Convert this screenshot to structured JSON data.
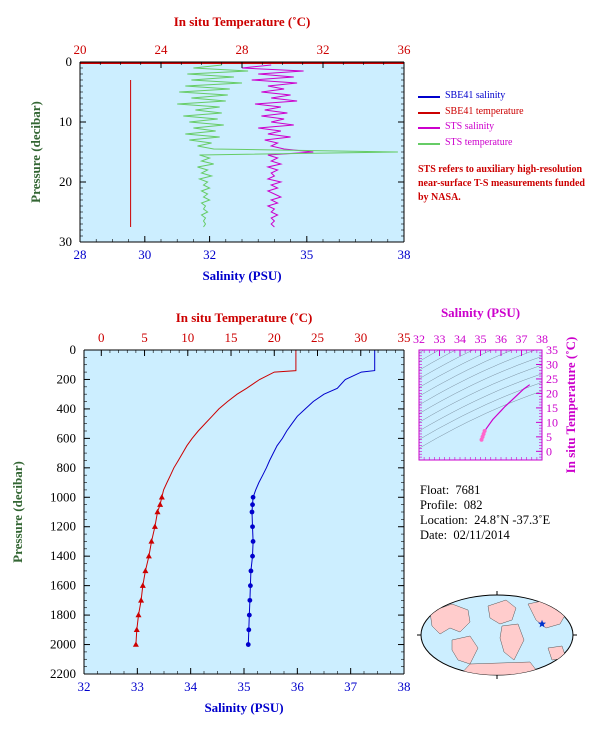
{
  "chart_data": [
    {
      "type": "line",
      "x_bottom": {
        "label": "Salinity (PSU)",
        "range": [
          28,
          38
        ],
        "ticks": [
          "28",
          "30",
          "32",
          "35",
          "38"
        ],
        "tick_values": [
          28,
          30,
          32,
          35,
          38
        ]
      },
      "x_top": {
        "label": "In situ Temperature (˚C)",
        "range": [
          20,
          36
        ],
        "ticks": [
          "20",
          "24",
          "28",
          "32",
          "36"
        ],
        "tick_values": [
          20,
          24,
          28,
          32,
          36
        ]
      },
      "y": {
        "label": "Pressure (decibar)",
        "range": [
          0,
          30
        ],
        "ticks": [
          "0",
          "10",
          "20",
          "30"
        ],
        "tick_values": [
          0,
          10,
          20,
          30
        ],
        "inverted": true
      },
      "legend": {
        "placement": "right",
        "entries": [
          {
            "name": "SBE41 salinity",
            "color": "#0000cc"
          },
          {
            "name": "SBE41 temperature",
            "color": "#cc0000"
          },
          {
            "name": "STS salinity",
            "color": "#cc00cc"
          },
          {
            "name": "STS temperature",
            "color": "#66cc66"
          }
        ]
      },
      "note": "STS refers to auxiliary high-resolution near-surface T-S measurements funded by NASA.",
      "series": [
        {
          "name": "STS salinity",
          "color": "#cc00cc",
          "pressure": [
            0.5,
            1,
            1.5,
            2,
            2.5,
            3,
            3.5,
            4,
            4.5,
            5,
            5.5,
            6,
            6.5,
            7,
            7.5,
            8,
            8.5,
            9,
            9.5,
            10,
            10.5,
            11,
            11.5,
            12,
            12.5,
            13,
            13.5,
            14,
            14.5,
            15,
            15.5,
            16,
            16.5,
            17,
            17.5,
            18,
            18.5,
            19,
            19.5,
            20,
            20.5,
            21,
            21.5,
            22,
            22.5,
            23,
            23.5,
            24,
            24.5,
            25,
            25.5,
            26,
            26.5,
            27,
            27.5
          ],
          "salinity": [
            33.9,
            33.0,
            34.9,
            33.5,
            34.6,
            33.3,
            34.7,
            33.8,
            34.3,
            33.6,
            34.5,
            33.9,
            34.7,
            33.4,
            34.2,
            33.7,
            34.4,
            33.6,
            34.3,
            33.9,
            34.6,
            33.5,
            34.2,
            33.8,
            34.5,
            33.7,
            34.1,
            33.9,
            34.3,
            35.2,
            33.8,
            34.1,
            33.9,
            34.2,
            33.8,
            34.1,
            33.9,
            34.0,
            33.8,
            34.2,
            33.9,
            34.1,
            33.8,
            34.0,
            34.2,
            33.9,
            34.1,
            33.8,
            34.0,
            33.9,
            34.1,
            33.9,
            34.0,
            33.9,
            34.0
          ]
        },
        {
          "name": "STS temperature",
          "color": "#66cc66",
          "pressure": [
            0.5,
            1,
            1.5,
            2,
            2.5,
            3,
            3.5,
            4,
            4.5,
            5,
            5.5,
            6,
            6.5,
            7,
            7.5,
            8,
            8.5,
            9,
            9.5,
            10,
            10.5,
            11,
            11.5,
            12,
            12.5,
            13,
            13.5,
            14,
            14.5,
            15,
            15.5,
            16,
            16.5,
            17,
            17.5,
            18,
            18.5,
            19,
            19.5,
            20,
            20.5,
            21,
            21.5,
            22,
            22.5,
            23,
            23.5,
            24,
            24.5,
            25,
            25.5,
            26,
            26.5,
            27,
            27.5
          ],
          "temperature": [
            27.0,
            25.6,
            28.3,
            25.3,
            27.6,
            25.5,
            28.0,
            25.2,
            27.4,
            24.9,
            27.3,
            25.5,
            27.2,
            24.8,
            26.9,
            25.7,
            27.0,
            25.1,
            26.8,
            25.4,
            27.1,
            25.6,
            26.7,
            25.2,
            26.9,
            25.4,
            26.5,
            25.8,
            26.6,
            35.7,
            25.9,
            26.4,
            26.0,
            26.6,
            25.8,
            26.3,
            26.0,
            26.5,
            25.9,
            26.3,
            26.1,
            26.4,
            26.0,
            26.3,
            26.1,
            26.4,
            26.0,
            26.2,
            26.1,
            26.3,
            26.0,
            26.2,
            26.1,
            26.2,
            26.1
          ]
        },
        {
          "name": "SBE41 temperature",
          "color": "#cc0000",
          "pressure": [
            3,
            27.5
          ],
          "temperature": [
            22.5,
            22.5
          ]
        }
      ]
    },
    {
      "type": "line",
      "x_bottom": {
        "label": "Salinity (PSU)",
        "range": [
          32,
          38
        ],
        "ticks": [
          "32",
          "33",
          "34",
          "35",
          "36",
          "37",
          "38"
        ],
        "tick_values": [
          32,
          33,
          34,
          35,
          36,
          37,
          38
        ]
      },
      "x_top": {
        "label": "In situ Temperature (˚C)",
        "range": [
          -2,
          35
        ],
        "ticks": [
          "0",
          "5",
          "10",
          "15",
          "20",
          "25",
          "30",
          "35"
        ],
        "tick_values": [
          0,
          5,
          10,
          15,
          20,
          25,
          30,
          35
        ]
      },
      "y": {
        "label": "Pressure (decibar)",
        "range": [
          0,
          2200
        ],
        "ticks": [
          "0",
          "200",
          "400",
          "600",
          "800",
          "1000",
          "1200",
          "1400",
          "1600",
          "1800",
          "2000",
          "2200"
        ],
        "tick_values": [
          0,
          200,
          400,
          600,
          800,
          1000,
          1200,
          1400,
          1600,
          1800,
          2000,
          2200
        ],
        "inverted": true
      },
      "series": [
        {
          "name": "SBE41 salinity",
          "color": "#0000cc",
          "pressure": [
            0,
            140,
            150,
            200,
            260,
            300,
            350,
            400,
            450,
            500,
            550,
            600,
            650,
            700,
            750,
            800,
            850,
            900,
            950,
            1000,
            1050,
            1100,
            1200,
            1300,
            1400,
            1500,
            1600,
            1700,
            1800,
            1900,
            2000
          ],
          "salinity": [
            37.45,
            37.45,
            37.2,
            36.9,
            36.75,
            36.5,
            36.3,
            36.15,
            36.0,
            35.9,
            35.8,
            35.72,
            35.62,
            35.55,
            35.48,
            35.42,
            35.35,
            35.28,
            35.22,
            35.17,
            35.16,
            35.15,
            35.16,
            35.17,
            35.16,
            35.13,
            35.12,
            35.11,
            35.1,
            35.09,
            35.08
          ]
        },
        {
          "name": "SBE41 temperature",
          "color": "#cc0000",
          "pressure": [
            0,
            140,
            150,
            200,
            260,
            300,
            350,
            400,
            450,
            500,
            550,
            600,
            650,
            700,
            750,
            800,
            850,
            900,
            950,
            1000,
            1050,
            1100,
            1200,
            1300,
            1400,
            1500,
            1600,
            1700,
            1800,
            1900,
            2000
          ],
          "temperature": [
            22.5,
            22.5,
            20.0,
            18.3,
            16.8,
            15.7,
            14.6,
            13.6,
            12.8,
            12.0,
            11.2,
            10.5,
            9.9,
            9.4,
            8.9,
            8.4,
            8.0,
            7.6,
            7.2,
            7.0,
            6.8,
            6.5,
            6.2,
            5.8,
            5.5,
            5.1,
            4.8,
            4.6,
            4.3,
            4.1,
            4.0
          ]
        }
      ]
    },
    {
      "type": "scatter",
      "x_top": {
        "label": "Salinity (PSU)",
        "range": [
          32,
          38
        ],
        "ticks": [
          "32",
          "33",
          "34",
          "35",
          "36",
          "37",
          "38"
        ],
        "tick_values": [
          32,
          33,
          34,
          35,
          36,
          37,
          38
        ]
      },
      "y_right": {
        "label": "In situ Temperature (˚C)",
        "range": [
          -3,
          35
        ],
        "ticks": [
          "0",
          "5",
          "10",
          "15",
          "20",
          "25",
          "30",
          "35"
        ],
        "tick_values": [
          0,
          5,
          10,
          15,
          20,
          25,
          30,
          35
        ]
      },
      "series": [
        {
          "name": "T-S",
          "color": "#ff66cc",
          "salinity": [
            35.05,
            35.1,
            35.15,
            35.2,
            35.3,
            35.45,
            35.6,
            35.8,
            36.0,
            36.2,
            36.5,
            36.8,
            37.1,
            37.4
          ],
          "temperature": [
            4.0,
            5.0,
            6.0,
            7.0,
            8.0,
            9.5,
            11.0,
            12.5,
            14.0,
            15.5,
            17.5,
            19.5,
            21.5,
            23.0
          ]
        }
      ]
    }
  ],
  "info": {
    "float_label": "Float:",
    "float_value": "7681",
    "profile_label": "Profile:",
    "profile_value": "082",
    "location_label": "Location:",
    "location_value": "24.8˚N  -37.3˚E",
    "date_label": "Date:",
    "date_value": "02/11/2014"
  },
  "colors": {
    "plot_bg": "#cceeff",
    "salinity": "#0000cc",
    "temperature": "#cc0000",
    "sts_salinity": "#cc00cc",
    "sts_temperature": "#66cc66",
    "ts": "#cc00cc",
    "axis_y": "#336633"
  },
  "map": {
    "marker_icon": "star-icon"
  }
}
